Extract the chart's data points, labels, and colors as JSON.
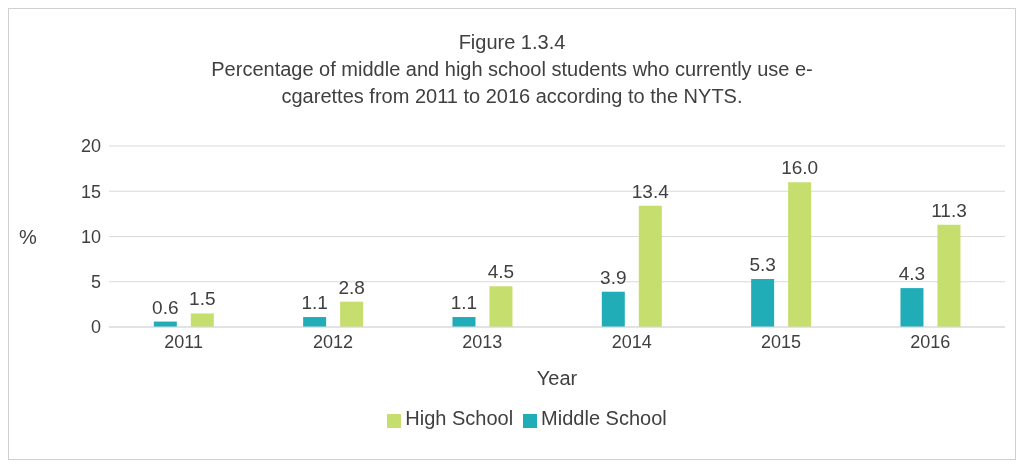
{
  "chart_data": {
    "type": "bar",
    "title": "Figure 1.3.4",
    "subtitle": "Percentage of middle and high school students who currently use e-cgarettes from 2011 to 2016 according to the NYTS.",
    "xlabel": "Year",
    "ylabel": "%",
    "categories": [
      "2011",
      "2012",
      "2013",
      "2014",
      "2015",
      "2016"
    ],
    "series": [
      {
        "name": "Middle School",
        "color": "#20adb8",
        "values": [
          0.6,
          1.1,
          1.1,
          3.9,
          5.3,
          4.3
        ],
        "value_labels": [
          "0.6",
          "1.1",
          "1.1",
          "3.9",
          "5.3",
          "4.3"
        ]
      },
      {
        "name": "High School",
        "color": "#c5de6e",
        "values": [
          1.5,
          2.8,
          4.5,
          13.4,
          16.0,
          11.3
        ],
        "value_labels": [
          "1.5",
          "2.8",
          "4.5",
          "13.4",
          "16.0",
          "11.3"
        ]
      }
    ],
    "ylim": [
      0,
      20
    ],
    "yticks": [
      0,
      5,
      10,
      15,
      20
    ],
    "grid": "y",
    "legend": "bottom"
  }
}
